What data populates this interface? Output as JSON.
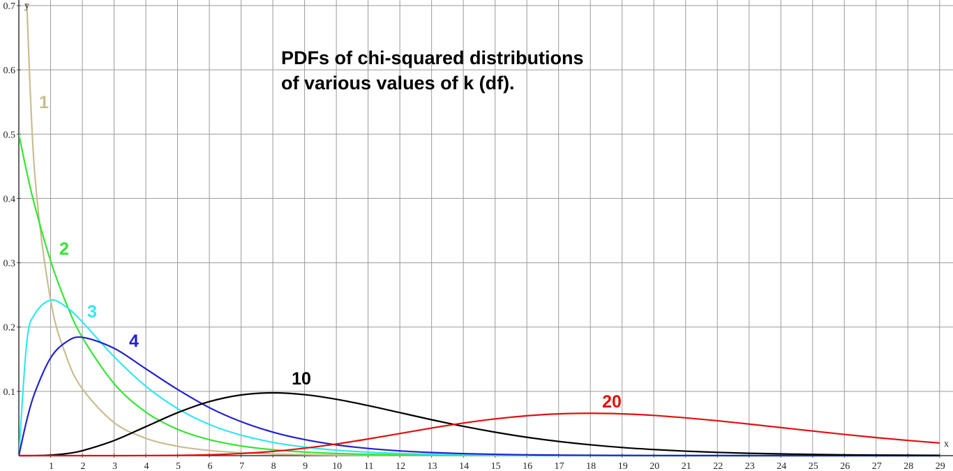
{
  "chart_data": {
    "type": "line",
    "title": [
      "PDFs of chi-squared distributions",
      "of various values of k (df)."
    ],
    "xlabel": "x",
    "ylabel": "y",
    "xlim": [
      0,
      29.4
    ],
    "ylim": [
      0,
      0.7
    ],
    "xticks": [
      1,
      2,
      3,
      4,
      5,
      6,
      7,
      8,
      9,
      10,
      11,
      12,
      13,
      14,
      15,
      16,
      17,
      18,
      19,
      20,
      21,
      22,
      23,
      24,
      25,
      26,
      27,
      28,
      29
    ],
    "yticks": [
      0.1,
      0.2,
      0.3,
      0.4,
      0.5,
      0.6,
      0.7
    ],
    "grid": true,
    "x": [
      0,
      0.25,
      0.5,
      1,
      1.5,
      2,
      3,
      4,
      5,
      6,
      7,
      8,
      9,
      10,
      11,
      12,
      13,
      14,
      15,
      16,
      17,
      18,
      19,
      20,
      21,
      22,
      23,
      24,
      25,
      26,
      27,
      28,
      29
    ],
    "series": [
      {
        "name": "1",
        "color": "#c8bd8f",
        "values": [
          null,
          0.704,
          0.439,
          0.242,
          0.154,
          0.104,
          0.0514,
          0.027,
          0.0146,
          0.0081,
          0.0046,
          0.0026,
          0.0015,
          0.00085,
          0.00049,
          0.00029,
          0.00017,
          0.0001,
          6e-05,
          3e-05,
          2e-05,
          1e-05,
          1e-05,
          0,
          0,
          0,
          0,
          0,
          0,
          0,
          0,
          0,
          0
        ]
      },
      {
        "name": "2",
        "color": "#33e633",
        "values": [
          0.5,
          0.441,
          0.389,
          0.303,
          0.236,
          0.184,
          0.112,
          0.0677,
          0.041,
          0.0249,
          0.0151,
          0.0092,
          0.0056,
          0.0034,
          0.002,
          0.0012,
          0.0008,
          0.0005,
          0.0003,
          0.0002,
          0.0001,
          0.0001,
          0,
          0,
          0,
          0,
          0,
          0,
          0,
          0,
          0,
          0,
          0
        ]
      },
      {
        "name": "3",
        "color": "#33e6f0",
        "values": [
          0,
          0.176,
          0.22,
          0.242,
          0.231,
          0.208,
          0.154,
          0.108,
          0.0732,
          0.0486,
          0.0319,
          0.0207,
          0.0133,
          0.0085,
          0.0054,
          0.0034,
          0.0022,
          0.0013,
          0.0009,
          0.0005,
          0.0003,
          0.0002,
          0.0001,
          0.0001,
          0,
          0,
          0,
          0,
          0,
          0,
          0,
          0,
          0
        ]
      },
      {
        "name": "4",
        "color": "#2222cc",
        "values": [
          0,
          0.0552,
          0.0974,
          0.152,
          0.177,
          0.184,
          0.167,
          0.135,
          0.103,
          0.0747,
          0.0529,
          0.0366,
          0.025,
          0.0168,
          0.0112,
          0.0074,
          0.0049,
          0.0032,
          0.0021,
          0.0013,
          0.0009,
          0.0006,
          0.0004,
          0.0002,
          0.0001,
          0.0001,
          0,
          0,
          0,
          0,
          0,
          0,
          0
        ]
      },
      {
        "name": "10",
        "color": "#000000",
        "values": [
          0,
          0,
          6e-05,
          0.0008,
          0.0031,
          0.0077,
          0.0235,
          0.0451,
          0.0668,
          0.084,
          0.0944,
          0.0977,
          0.0949,
          0.0877,
          0.0779,
          0.0669,
          0.0559,
          0.0456,
          0.0365,
          0.0286,
          0.0221,
          0.0169,
          0.0127,
          0.0095,
          0.007,
          0.0051,
          0.0037,
          0.0027,
          0.0019,
          0.0013,
          0.0009,
          0.0007,
          0.0005
        ]
      },
      {
        "name": "20",
        "color": "#e01010",
        "values": [
          0,
          0,
          0,
          0,
          0,
          0,
          1e-05,
          0.0001,
          0.00043,
          0.00135,
          0.0033,
          0.0066,
          0.0116,
          0.0181,
          0.0259,
          0.0344,
          0.0429,
          0.0507,
          0.0572,
          0.062,
          0.065,
          0.0659,
          0.065,
          0.0626,
          0.0588,
          0.0543,
          0.0491,
          0.0437,
          0.0383,
          0.033,
          0.0281,
          0.0237,
          0.0197
        ]
      }
    ]
  }
}
